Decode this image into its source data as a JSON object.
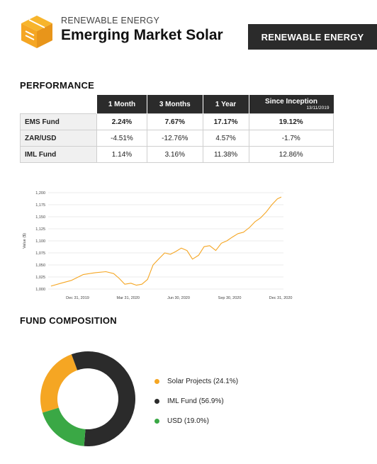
{
  "header": {
    "subtitle": "RENEWABLE ENERGY",
    "title": "Emerging Market Solar",
    "tag": "RENEWABLE ENERGY"
  },
  "performance": {
    "heading": "PERFORMANCE",
    "columns": [
      "1 Month",
      "3 Months",
      "1 Year",
      "Since Inception"
    ],
    "inception_date": "13/11/2019",
    "rows": [
      {
        "label": "EMS Fund",
        "values": [
          "2.24%",
          "7.67%",
          "17.17%",
          "19.12%"
        ]
      },
      {
        "label": "ZAR/USD",
        "values": [
          "-4.51%",
          "-12.76%",
          "4.57%",
          "-1.7%"
        ]
      },
      {
        "label": "IML Fund",
        "values": [
          "1.14%",
          "3.16%",
          "11.38%",
          "12.86%"
        ]
      }
    ]
  },
  "chart_data": {
    "type": "line",
    "title": "",
    "xlabel": "",
    "ylabel": "Value ($)",
    "ylim": [
      1000,
      1200
    ],
    "x_ticks": [
      "Dec 31, 2019",
      "Mar 31, 2020",
      "Jun 30, 2020",
      "Sep 30, 2020",
      "Dec 31, 2020"
    ],
    "y_ticks": [
      "1,000",
      "1,025",
      "1,050",
      "1,075",
      "1,100",
      "1,125",
      "1,150",
      "1,175",
      "1,200"
    ],
    "grid": true,
    "color": "#F5A623",
    "series": [
      {
        "x": [
          "2019-11-13",
          "2019-12-01",
          "2019-12-20",
          "2020-01-10",
          "2020-02-01",
          "2020-02-20",
          "2020-03-05",
          "2020-03-15",
          "2020-03-25",
          "2020-04-05",
          "2020-04-15",
          "2020-04-25",
          "2020-05-05",
          "2020-05-15",
          "2020-05-25",
          "2020-06-05",
          "2020-06-15",
          "2020-06-25",
          "2020-07-05",
          "2020-07-15",
          "2020-07-25",
          "2020-08-05",
          "2020-08-15",
          "2020-08-25",
          "2020-09-05",
          "2020-09-15",
          "2020-09-25",
          "2020-10-05",
          "2020-10-15",
          "2020-10-25",
          "2020-11-05",
          "2020-11-15",
          "2020-11-25",
          "2020-12-05",
          "2020-12-15",
          "2020-12-25",
          "2021-01-01"
        ],
        "y": [
          1006,
          1012,
          1018,
          1030,
          1034,
          1036,
          1032,
          1022,
          1010,
          1012,
          1008,
          1010,
          1020,
          1050,
          1062,
          1075,
          1072,
          1078,
          1085,
          1080,
          1062,
          1070,
          1088,
          1090,
          1080,
          1095,
          1100,
          1108,
          1115,
          1118,
          1128,
          1140,
          1148,
          1160,
          1175,
          1187,
          1191
        ]
      }
    ]
  },
  "composition": {
    "heading": "FUND COMPOSITION",
    "slices": [
      {
        "label": "Solar Projects (24.1%)",
        "value": 24.1,
        "color": "#F5A623"
      },
      {
        "label": "IML Fund (56.9%)",
        "value": 56.9,
        "color": "#2b2b2b"
      },
      {
        "label": "USD (19.0%)",
        "value": 19.0,
        "color": "#3aa845"
      }
    ]
  }
}
